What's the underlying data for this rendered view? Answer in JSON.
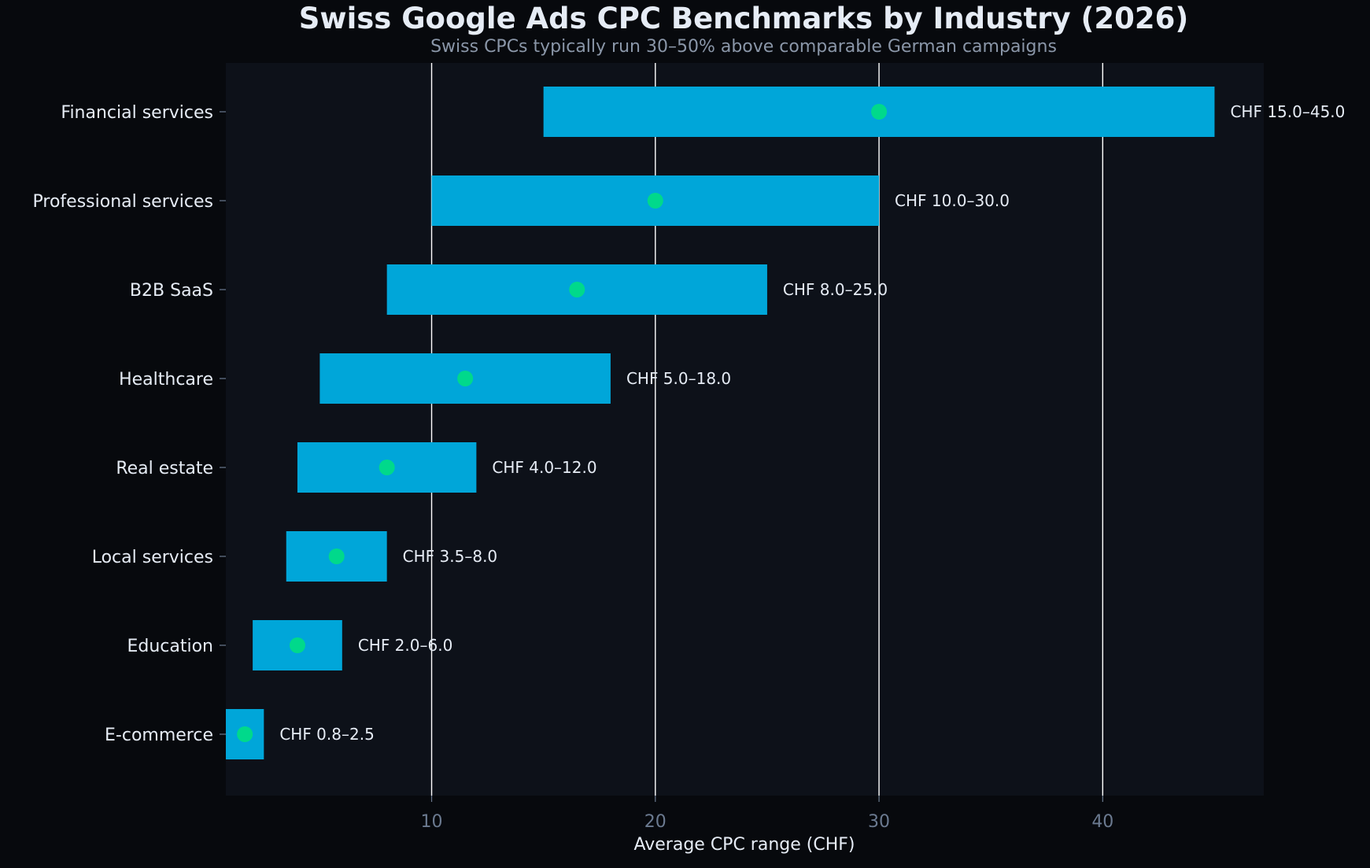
{
  "chart_data": {
    "type": "bar",
    "orientation": "horizontal",
    "title": "Swiss Google Ads CPC Benchmarks by Industry (2026)",
    "subtitle": "Swiss CPCs typically run 30–50% above comparable German campaigns",
    "xlabel": "Average CPC range (CHF)",
    "ylabel": "",
    "xlim": [
      0.8,
      47.2
    ],
    "xticks": [
      10,
      20,
      30,
      40
    ],
    "grid": "vertical",
    "categories": [
      "Financial services",
      "Professional services",
      "B2B SaaS",
      "Healthcare",
      "Real estate",
      "Local services",
      "Education",
      "E-commerce"
    ],
    "low": [
      15.0,
      10.0,
      8.0,
      5.0,
      4.0,
      3.5,
      2.0,
      0.8
    ],
    "high": [
      45.0,
      30.0,
      25.0,
      18.0,
      12.0,
      8.0,
      6.0,
      2.5
    ],
    "midpoint": [
      30.0,
      20.0,
      16.5,
      11.5,
      8.0,
      5.75,
      4.0,
      1.65
    ],
    "labels": [
      "CHF 15.0–45.0",
      "CHF 10.0–30.0",
      "CHF 8.0–25.0",
      "CHF 5.0–18.0",
      "CHF 4.0–12.0",
      "CHF 3.5–8.0",
      "CHF 2.0–6.0",
      "CHF 0.8–2.5"
    ],
    "colors": {
      "background": "#07090d",
      "plot_background": "#0d1119",
      "bar": "#00a6d9",
      "midpoint": "#00d98b",
      "text": "#e6ecf5",
      "tick": "#6b7a90",
      "subtitle": "#8a96a8",
      "grid": "#ffffff"
    }
  }
}
